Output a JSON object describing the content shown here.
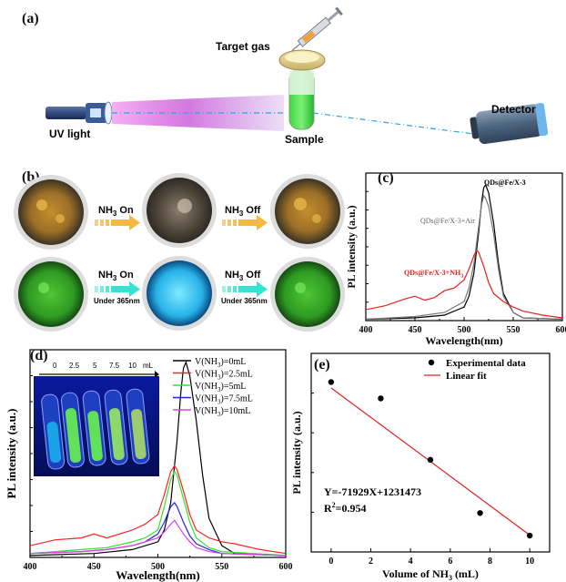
{
  "panels": {
    "a": {
      "label": "(a)",
      "target_gas": "Target gas",
      "uv_light": "UV light",
      "sample": "Sample",
      "detector": "Detector"
    },
    "b": {
      "label": "(b)",
      "row1": {
        "on_text": "NH",
        "on_sub": "3",
        "on_suffix": " On",
        "off_text": "NH",
        "off_sub": "3",
        "off_suffix": " Off"
      },
      "row2": {
        "on_text": "NH",
        "on_sub": "3",
        "on_suffix": " On",
        "off_text": "NH",
        "off_sub": "3",
        "off_suffix": " Off",
        "under": "Under 365nm"
      }
    },
    "c": {
      "label": "(c)",
      "legend_qds": "QDs@Fe/X-3",
      "legend_air": "QDs@Fe/X-3+Air",
      "legend_nh3": "QDs@Fe/X-3+NH",
      "legend_nh3_sub": "3"
    },
    "d": {
      "label": "(d)",
      "inset_ticks": [
        "0",
        "2.5",
        "5",
        "7.5",
        "10",
        "mL"
      ]
    },
    "e": {
      "label": "(e)",
      "equation": "Y=-71929X+1231473",
      "r2": "R",
      "r2_sup": "2",
      "r2_val": "=0.954"
    }
  },
  "colors": {
    "nh3_arrow": "#f5b942",
    "uv_arrow": "#36e3d3",
    "c_black": "#000000",
    "c_gray": "#777777",
    "c_red": "#e8201c",
    "d_black": "#000000",
    "d_red": "#ff2020",
    "d_green": "#33e033",
    "d_blue": "#2424e8",
    "d_magenta": "#e040e0",
    "e_fit": "#e02020"
  },
  "chart_data": [
    {
      "id": "c",
      "type": "line",
      "xlabel": "Wavelength(nm)",
      "ylabel": "PL intensity (a.u.)",
      "xlim": [
        400,
        600
      ],
      "xticks": [
        "400",
        "450",
        "500",
        "550",
        "600"
      ],
      "series": [
        {
          "name": "QDs@Fe/X-3",
          "color": "#000000",
          "x": [
            400,
            450,
            480,
            500,
            505,
            510,
            515,
            518,
            520,
            522,
            525,
            530,
            535,
            540,
            550,
            560,
            600
          ],
          "y": [
            0.01,
            0.02,
            0.04,
            0.1,
            0.18,
            0.35,
            0.66,
            0.88,
            0.98,
            1.0,
            0.94,
            0.72,
            0.42,
            0.2,
            0.06,
            0.02,
            0.01
          ]
        },
        {
          "name": "QDs@Fe/X-3+Air",
          "color": "#777777",
          "x": [
            400,
            450,
            480,
            500,
            505,
            510,
            515,
            518,
            520,
            522,
            525,
            530,
            535,
            540,
            550,
            560,
            600
          ],
          "y": [
            0.01,
            0.03,
            0.06,
            0.14,
            0.24,
            0.42,
            0.7,
            0.86,
            0.92,
            0.9,
            0.84,
            0.64,
            0.38,
            0.18,
            0.06,
            0.02,
            0.01
          ]
        },
        {
          "name": "QDs@Fe/X-3+NH3",
          "color": "#e8201c",
          "x": [
            400,
            420,
            440,
            450,
            460,
            470,
            480,
            490,
            500,
            505,
            510,
            513,
            515,
            520,
            525,
            530,
            540,
            550,
            560,
            580,
            600
          ],
          "y": [
            0.08,
            0.11,
            0.16,
            0.18,
            0.15,
            0.17,
            0.22,
            0.24,
            0.3,
            0.38,
            0.48,
            0.52,
            0.5,
            0.4,
            0.28,
            0.2,
            0.14,
            0.1,
            0.07,
            0.04,
            0.02
          ]
        }
      ]
    },
    {
      "id": "d",
      "type": "line",
      "xlabel": "Wavelength(nm)",
      "ylabel": "PL intensity (a.u.)",
      "xlim": [
        400,
        600
      ],
      "xticks": [
        "400",
        "450",
        "500",
        "550",
        "600"
      ],
      "series": [
        {
          "name": "V(NH3)=0mL",
          "label": "V(NH",
          "sub": "3",
          "suffix": ")=0mL",
          "color": "#000000",
          "x": [
            400,
            450,
            480,
            500,
            505,
            510,
            515,
            518,
            520,
            522,
            525,
            530,
            535,
            540,
            550,
            560,
            600
          ],
          "y": [
            0.01,
            0.02,
            0.04,
            0.08,
            0.14,
            0.28,
            0.6,
            0.85,
            0.97,
            1.0,
            0.93,
            0.7,
            0.42,
            0.2,
            0.06,
            0.02,
            0.01
          ]
        },
        {
          "name": "V(NH3)=2.5mL",
          "label": "V(NH",
          "sub": "3",
          "suffix": ")=2.5mL",
          "color": "#ff2020",
          "x": [
            400,
            420,
            440,
            450,
            460,
            470,
            480,
            490,
            500,
            505,
            510,
            513,
            515,
            520,
            525,
            530,
            540,
            550,
            560,
            580,
            600
          ],
          "y": [
            0.06,
            0.09,
            0.1,
            0.12,
            0.1,
            0.12,
            0.14,
            0.17,
            0.22,
            0.32,
            0.44,
            0.47,
            0.45,
            0.34,
            0.22,
            0.14,
            0.1,
            0.08,
            0.07,
            0.04,
            0.02
          ]
        },
        {
          "name": "V(NH3)=5mL",
          "label": "V(NH",
          "sub": "3",
          "suffix": ")=5mL",
          "color": "#33e033",
          "x": [
            400,
            440,
            460,
            480,
            490,
            500,
            505,
            510,
            513,
            515,
            520,
            525,
            530,
            540,
            550,
            600
          ],
          "y": [
            0.02,
            0.04,
            0.05,
            0.08,
            0.1,
            0.14,
            0.26,
            0.4,
            0.44,
            0.42,
            0.3,
            0.18,
            0.1,
            0.05,
            0.03,
            0.01
          ]
        },
        {
          "name": "V(NH3)=7.5mL",
          "label": "V(NH",
          "sub": "3",
          "suffix": ")=7.5mL",
          "color": "#2424e8",
          "x": [
            400,
            440,
            460,
            480,
            490,
            500,
            505,
            510,
            513,
            515,
            520,
            525,
            530,
            540,
            550,
            600
          ],
          "y": [
            0.02,
            0.03,
            0.04,
            0.06,
            0.08,
            0.12,
            0.18,
            0.26,
            0.28,
            0.26,
            0.18,
            0.11,
            0.07,
            0.04,
            0.02,
            0.01
          ]
        },
        {
          "name": "V(NH3)=10mL",
          "label": "V(NH",
          "sub": "3",
          "suffix": ")=10mL",
          "color": "#e040e0",
          "x": [
            400,
            440,
            460,
            480,
            490,
            500,
            505,
            510,
            513,
            515,
            520,
            525,
            530,
            540,
            550,
            600
          ],
          "y": [
            0.02,
            0.03,
            0.04,
            0.06,
            0.08,
            0.1,
            0.13,
            0.17,
            0.19,
            0.17,
            0.12,
            0.08,
            0.05,
            0.03,
            0.02,
            0.01
          ]
        }
      ]
    },
    {
      "id": "e",
      "type": "scatter",
      "xlabel": "Volume of NH",
      "xlabel_sub": "3",
      "xlabel_suffix": " (mL)",
      "ylabel": "PL intensity (a.u.)",
      "xlim": [
        -1,
        11
      ],
      "xticks": [
        "0",
        "2",
        "4",
        "6",
        "8",
        "10"
      ],
      "series": [
        {
          "name": "Experimental data",
          "x": [
            0,
            2.5,
            5,
            7.5,
            10
          ],
          "y": [
            1260000,
            1180000,
            880000,
            620000,
            510000
          ]
        },
        {
          "name": "Linear fit",
          "x": [
            0,
            10
          ],
          "y": [
            1231473,
            512183
          ]
        }
      ]
    }
  ]
}
